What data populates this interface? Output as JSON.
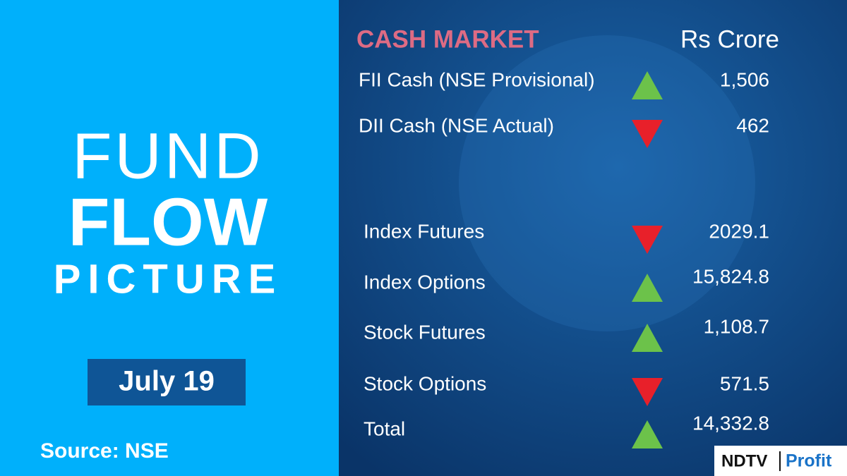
{
  "left": {
    "title_lines": [
      "FUND",
      "FLOW",
      "PICTURE"
    ],
    "date": "July 19",
    "source": "Source: NSE"
  },
  "right": {
    "heading": "CASH MARKET",
    "unit": "Rs Crore",
    "rows": [
      {
        "label": "FII Cash (NSE Provisional)",
        "direction": "up",
        "value": "1,506"
      },
      {
        "label": "DII Cash (NSE Actual)",
        "direction": "down",
        "value": "462"
      },
      {
        "label": "Index Futures",
        "direction": "down",
        "value": "2029.1"
      },
      {
        "label": "Index Options",
        "direction": "up",
        "value": "15,824.8"
      },
      {
        "label": "Stock Futures",
        "direction": "up",
        "value": "1,108.7"
      },
      {
        "label": "Stock Options",
        "direction": "down",
        "value": "571.5"
      },
      {
        "label": "Total",
        "direction": "up",
        "value": "14,332.8"
      }
    ]
  },
  "logo": {
    "brand": "NDTV",
    "sub": "Profit"
  }
}
